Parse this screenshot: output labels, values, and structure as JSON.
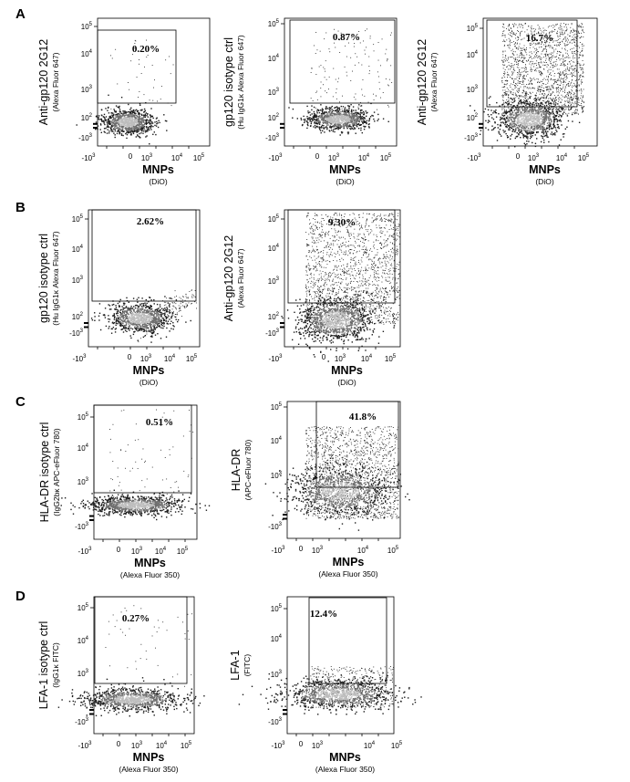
{
  "chart_data": [
    {
      "type": "scatter",
      "panel": "A",
      "gate_percent": "0.20%",
      "ylabel": "Anti-gp120 2G12",
      "ylabel_sub": "(Alexa Fluor 647)",
      "xlabel": "MNPs",
      "xlabel_sub": "(DiO)",
      "gate_y_range": [
        200,
        100000
      ],
      "gate_x_range": [
        -500,
        30000
      ],
      "xlim": [
        -10000,
        100000
      ],
      "ylim": [
        -1000,
        100000
      ],
      "scale": "biexponential",
      "x_ticks": [
        "-10",
        "0",
        "10",
        "10",
        "10"
      ],
      "y_ticks": [
        "10",
        "10",
        "10",
        "10",
        "-10"
      ]
    },
    {
      "type": "scatter",
      "panel": "A",
      "gate_percent": "0.87%",
      "ylabel": "gp120 isotype ctrl",
      "ylabel_sub": "(Hu IgG1κ Alexa Fluor 647)",
      "xlabel": "MNPs",
      "xlabel_sub": "(DiO)",
      "gate_y_range": [
        200,
        100000
      ],
      "gate_x_range": [
        -500,
        30000
      ],
      "xlim": [
        -10000,
        100000
      ],
      "ylim": [
        -1000,
        100000
      ],
      "scale": "biexponential"
    },
    {
      "type": "scatter",
      "panel": "A",
      "gate_percent": "16.7%",
      "ylabel": "Anti-gp120 2G12",
      "ylabel_sub": "(Alexa Fluor 647)",
      "xlabel": "MNPs",
      "xlabel_sub": "(DiO)",
      "gate_y_range": [
        200,
        100000
      ],
      "gate_x_range": [
        -500,
        30000
      ],
      "xlim": [
        -10000,
        100000
      ],
      "ylim": [
        -1000,
        100000
      ],
      "scale": "biexponential"
    },
    {
      "type": "scatter",
      "panel": "B",
      "gate_percent": "2.62%",
      "ylabel": "gp120 isotype ctrl",
      "ylabel_sub": "(Hu IgG1κ Alexa Fluor 647)",
      "xlabel": "MNPs",
      "xlabel_sub": "(DiO)",
      "gate_y_range": [
        200,
        100000
      ],
      "gate_x_range": [
        -500,
        30000
      ],
      "xlim": [
        -10000,
        100000
      ],
      "ylim": [
        -1000,
        100000
      ],
      "scale": "biexponential"
    },
    {
      "type": "scatter",
      "panel": "B",
      "gate_percent": "9.30%",
      "ylabel": "Anti-gp120 2G12",
      "ylabel_sub": "(Alexa Fluor 647)",
      "xlabel": "MNPs",
      "xlabel_sub": "(DiO)",
      "gate_y_range": [
        200,
        100000
      ],
      "gate_x_range": [
        -500,
        30000
      ],
      "xlim": [
        -10000,
        100000
      ],
      "ylim": [
        -1000,
        100000
      ],
      "scale": "biexponential"
    },
    {
      "type": "scatter",
      "panel": "C",
      "gate_percent": "0.51%",
      "ylabel": "HLA-DR isotype ctrl",
      "ylabel_sub": "(IgG2bκ APC-eFluor 780)",
      "xlabel": "MNPs",
      "xlabel_sub": "(Alexa Fluor 350)",
      "gate_y_range": [
        500,
        100000
      ],
      "gate_x_range": [
        -500,
        30000
      ],
      "xlim": [
        -10000,
        100000
      ],
      "ylim": [
        -1000,
        100000
      ],
      "scale": "biexponential"
    },
    {
      "type": "scatter",
      "panel": "C",
      "gate_percent": "41.8%",
      "ylabel": "HLA-DR",
      "ylabel_sub": "(APC-eFluor 780)",
      "xlabel": "MNPs",
      "xlabel_sub": "(Alexa Fluor 350)",
      "gate_y_range": [
        500,
        100000
      ],
      "gate_x_range": [
        -500,
        30000
      ],
      "xlim": [
        -10000,
        100000
      ],
      "ylim": [
        -1000,
        100000
      ],
      "scale": "biexponential"
    },
    {
      "type": "scatter",
      "panel": "D",
      "gate_percent": "0.27%",
      "ylabel": "LFA-1 isotype ctrl",
      "ylabel_sub": "(IgG1κ FITC)",
      "xlabel": "MNPs",
      "xlabel_sub": "(Alexa Fluor 350)",
      "gate_y_range": [
        500,
        100000
      ],
      "gate_x_range": [
        -500,
        30000
      ],
      "xlim": [
        -10000,
        100000
      ],
      "ylim": [
        -1000,
        100000
      ],
      "scale": "biexponential"
    },
    {
      "type": "scatter",
      "panel": "D",
      "gate_percent": "12.4%",
      "ylabel": "LFA-1",
      "ylabel_sub": "(FITC)",
      "xlabel": "MNPs",
      "xlabel_sub": "(Alexa Fluor 350)",
      "gate_y_range": [
        500,
        100000
      ],
      "gate_x_range": [
        -500,
        30000
      ],
      "xlim": [
        -10000,
        100000
      ],
      "ylim": [
        -1000,
        100000
      ],
      "scale": "biexponential"
    }
  ],
  "tick_text": {
    "x_neg": "-10",
    "x_zero": "0",
    "x_pow": "10",
    "exp3": "3",
    "exp4": "4",
    "exp5": "5",
    "exp2": "2",
    "y_neg": "-10"
  }
}
